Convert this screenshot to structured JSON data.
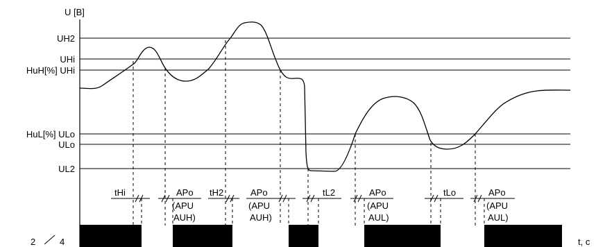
{
  "axes": {
    "y_label": "U [B]",
    "x_label": "t, c",
    "output_label_left": "2",
    "output_label_right": "4"
  },
  "levels": {
    "uh2": "UH2",
    "uhi": "UHi",
    "huh": "HuH[%] UHi",
    "hul": "HuL[%] ULo",
    "ulo": "ULo",
    "ul2": "UL2"
  },
  "intervals": {
    "thi": "tHi",
    "apo1": "APo",
    "apo1_mode1": "(APU",
    "apo1_mode2": "AUH)",
    "th2": "tH2",
    "apo2": "APo",
    "apo2_mode1": "(APU",
    "apo2_mode2": "AUH)",
    "tl2": "tL2",
    "apo3": "APo",
    "apo3_mode1": "(APU",
    "apo3_mode2": "AUL)",
    "tlo": "tLo",
    "apo4": "APo",
    "apo4_mode1": "(APU",
    "apo4_mode2": "AUL)"
  }
}
